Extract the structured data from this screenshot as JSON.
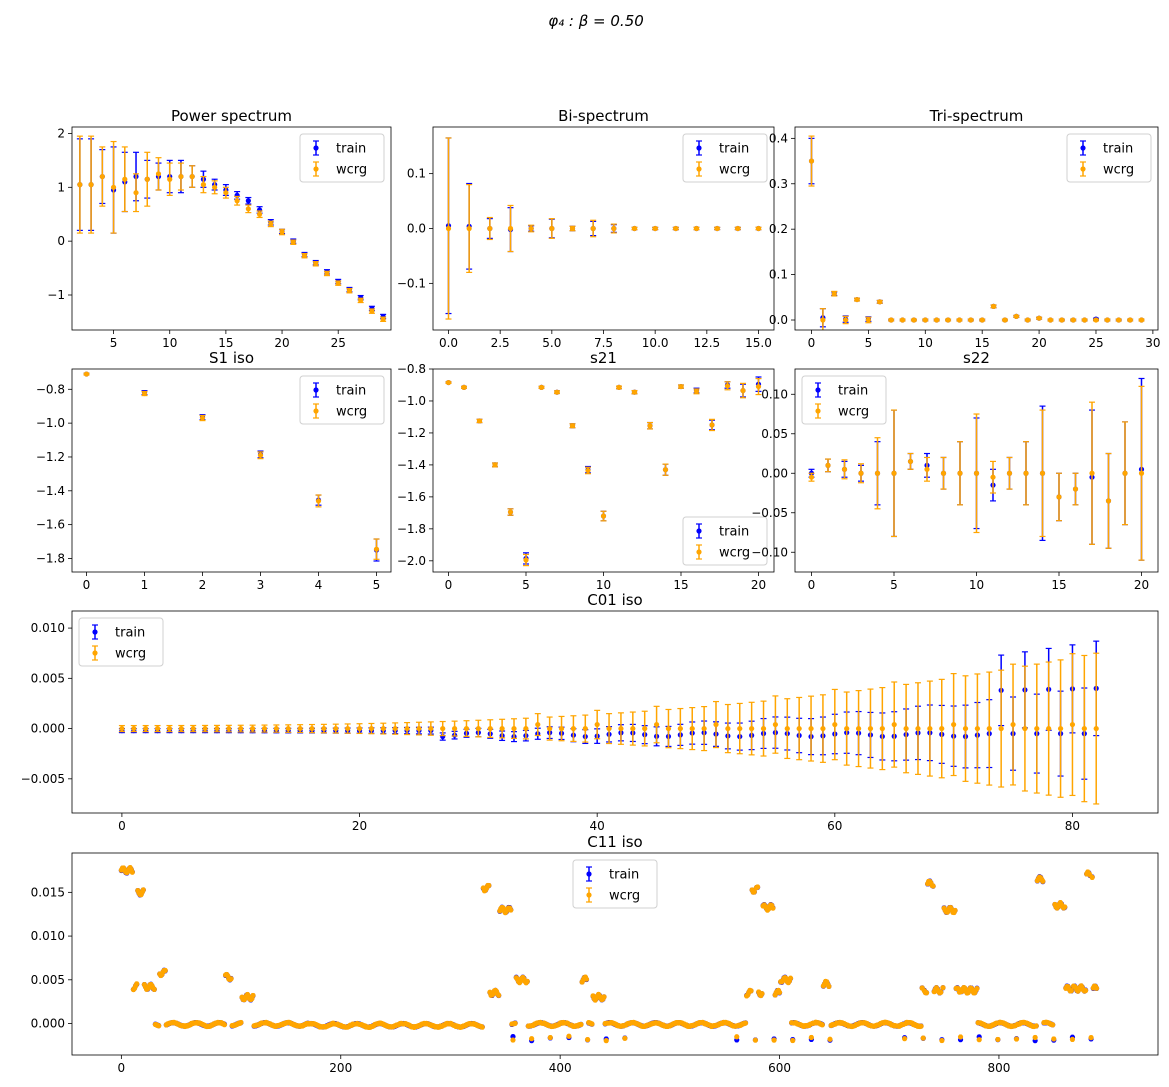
{
  "figure": {
    "suptitle": "φ₄ : β = 0.50"
  },
  "legend_labels": [
    "train",
    "wcrg"
  ],
  "colors": {
    "train": "#0000ff",
    "wcrg": "#ffa500"
  },
  "chart_data": [
    {
      "id": "power",
      "type": "scatter",
      "title": "Power spectrum",
      "xlabel": "",
      "ylabel": "",
      "xlim": [
        1.3,
        29.7
      ],
      "ylim": [
        -1.65,
        2.12
      ],
      "xticks": [
        5,
        10,
        15,
        20,
        25,
        30
      ],
      "yticks": [
        -1,
        0,
        1,
        2
      ],
      "legend_position": "top-right",
      "series": [
        {
          "name": "train",
          "x": [
            2,
            3,
            4,
            5,
            6,
            7,
            8,
            9,
            10,
            11,
            12,
            13,
            14,
            15,
            16,
            17,
            18,
            19,
            20,
            21,
            22,
            23,
            24,
            25,
            26,
            27,
            28,
            29
          ],
          "y": [
            1.05,
            1.05,
            1.2,
            0.95,
            1.1,
            1.2,
            1.15,
            1.2,
            1.2,
            1.2,
            1.2,
            1.15,
            1.05,
            0.95,
            0.85,
            0.75,
            0.58,
            0.35,
            0.18,
            0.0,
            -0.25,
            -0.4,
            -0.57,
            -0.75,
            -0.9,
            -1.05,
            -1.25,
            -1.4
          ],
          "err": [
            0.85,
            0.85,
            0.5,
            0.8,
            0.55,
            0.45,
            0.35,
            0.25,
            0.3,
            0.3,
            0.2,
            0.15,
            0.1,
            0.1,
            0.07,
            0.06,
            0.06,
            0.05,
            0.04,
            0.04,
            0.04,
            0.04,
            0.04,
            0.04,
            0.04,
            0.04,
            0.04,
            0.04
          ]
        },
        {
          "name": "wcrg",
          "x": [
            2,
            3,
            4,
            5,
            6,
            7,
            8,
            9,
            10,
            11,
            12,
            13,
            14,
            15,
            16,
            17,
            18,
            19,
            20,
            21,
            22,
            23,
            24,
            25,
            26,
            27,
            28,
            29
          ],
          "y": [
            1.05,
            1.05,
            1.2,
            1.0,
            1.15,
            0.9,
            1.15,
            1.25,
            1.15,
            1.2,
            1.2,
            1.05,
            1.0,
            0.9,
            0.75,
            0.6,
            0.5,
            0.32,
            0.17,
            -0.02,
            -0.27,
            -0.42,
            -0.6,
            -0.78,
            -0.92,
            -1.1,
            -1.3,
            -1.45
          ],
          "err": [
            0.9,
            0.9,
            0.55,
            0.85,
            0.6,
            0.35,
            0.5,
            0.3,
            0.3,
            0.25,
            0.2,
            0.15,
            0.12,
            0.1,
            0.08,
            0.07,
            0.06,
            0.05,
            0.05,
            0.04,
            0.04,
            0.04,
            0.04,
            0.04,
            0.04,
            0.04,
            0.04,
            0.04
          ]
        }
      ]
    },
    {
      "id": "bi",
      "type": "scatter",
      "title": "Bi-spectrum",
      "xlabel": "",
      "ylabel": "",
      "xlim": [
        -0.75,
        15.75
      ],
      "ylim": [
        -0.185,
        0.185
      ],
      "xticks": [
        0.0,
        2.5,
        5.0,
        7.5,
        10.0,
        12.5,
        15.0
      ],
      "yticks": [
        -0.1,
        0.0,
        0.1
      ],
      "legend_position": "top-right",
      "series": [
        {
          "name": "train",
          "x": [
            0,
            1,
            2,
            3,
            4,
            5,
            6,
            7,
            8,
            9,
            10,
            11,
            12,
            13,
            14,
            15
          ],
          "y": [
            0.005,
            0.004,
            0.0,
            -0.002,
            0.0,
            0.0,
            0.0,
            0.0,
            0.0,
            0.0,
            0.0,
            0.0,
            0.0,
            0.0,
            0.0,
            0.0
          ],
          "err": [
            0.16,
            0.078,
            0.018,
            0.04,
            0.005,
            0.017,
            0.004,
            0.013,
            0.007,
            0.002,
            0.002,
            0.002,
            0.002,
            0.002,
            0.002,
            0.002
          ]
        },
        {
          "name": "wcrg",
          "x": [
            0,
            1,
            2,
            3,
            4,
            5,
            6,
            7,
            8,
            9,
            10,
            11,
            12,
            13,
            14,
            15
          ],
          "y": [
            0.0,
            0.0,
            0.0,
            0.0,
            0.0,
            0.0,
            0.0,
            0.0,
            0.0,
            0.0,
            0.0,
            0.0,
            0.0,
            0.0,
            0.0,
            0.0
          ],
          "err": [
            0.165,
            0.08,
            0.02,
            0.042,
            0.006,
            0.018,
            0.004,
            0.015,
            0.008,
            0.002,
            0.002,
            0.002,
            0.002,
            0.002,
            0.002,
            0.002
          ]
        }
      ]
    },
    {
      "id": "tri",
      "type": "scatter",
      "title": "Tri-spectrum",
      "xlabel": "",
      "ylabel": "",
      "xlim": [
        -1.45,
        30.45
      ],
      "ylim": [
        -0.022,
        0.425
      ],
      "xticks": [
        0,
        5,
        10,
        15,
        20,
        25,
        30
      ],
      "yticks": [
        0.0,
        0.1,
        0.2,
        0.3,
        0.4
      ],
      "legend_position": "top-right",
      "series": [
        {
          "name": "train",
          "x": [
            0,
            1,
            2,
            3,
            4,
            5,
            6,
            7,
            8,
            9,
            10,
            11,
            12,
            13,
            14,
            15,
            16,
            17,
            18,
            19,
            20,
            21,
            22,
            23,
            24,
            25,
            26,
            27,
            28,
            29
          ],
          "y": [
            0.35,
            0.005,
            0.058,
            0.002,
            0.045,
            0.002,
            0.04,
            0.0,
            0.0,
            0.0,
            0.0,
            0.0,
            0.0,
            0.0,
            0.0,
            0.0,
            0.03,
            0.0,
            0.008,
            0.0,
            0.004,
            0.0,
            0.0,
            0.0,
            0.0,
            0.002,
            0.0,
            0.0,
            0.0,
            0.0
          ],
          "err": [
            0.05,
            0.02,
            0.004,
            0.007,
            0.003,
            0.005,
            0.003,
            0.002,
            0.002,
            0.002,
            0.002,
            0.002,
            0.002,
            0.002,
            0.002,
            0.002,
            0.003,
            0.002,
            0.002,
            0.002,
            0.002,
            0.002,
            0.002,
            0.002,
            0.002,
            0.002,
            0.002,
            0.002,
            0.002,
            0.002
          ]
        },
        {
          "name": "wcrg",
          "x": [
            0,
            1,
            2,
            3,
            4,
            5,
            6,
            7,
            8,
            9,
            10,
            11,
            12,
            13,
            14,
            15,
            16,
            17,
            18,
            19,
            20,
            21,
            22,
            23,
            24,
            25,
            26,
            27,
            28,
            29
          ],
          "y": [
            0.35,
            0.0,
            0.058,
            0.0,
            0.045,
            0.0,
            0.04,
            0.0,
            0.0,
            0.0,
            0.0,
            0.0,
            0.0,
            0.0,
            0.0,
            0.0,
            0.03,
            0.0,
            0.008,
            0.0,
            0.004,
            0.0,
            0.0,
            0.0,
            0.0,
            0.0,
            0.0,
            0.0,
            0.0,
            0.0
          ],
          "err": [
            0.055,
            0.025,
            0.005,
            0.008,
            0.003,
            0.006,
            0.003,
            0.002,
            0.002,
            0.002,
            0.002,
            0.002,
            0.002,
            0.002,
            0.002,
            0.002,
            0.003,
            0.002,
            0.002,
            0.002,
            0.002,
            0.002,
            0.002,
            0.002,
            0.002,
            0.002,
            0.002,
            0.002,
            0.002,
            0.002
          ]
        }
      ]
    },
    {
      "id": "s1iso",
      "type": "scatter",
      "title": "S1 iso",
      "xlabel": "",
      "ylabel": "",
      "xlim": [
        -0.25,
        5.25
      ],
      "ylim": [
        -1.88,
        -0.68
      ],
      "xticks": [
        0,
        1,
        2,
        3,
        4,
        5
      ],
      "yticks": [
        -1.8,
        -1.6,
        -1.4,
        -1.2,
        -1.0,
        -0.8
      ],
      "legend_position": "top-right",
      "series": [
        {
          "name": "train",
          "x": [
            0,
            1,
            2,
            3,
            4,
            5
          ],
          "y": [
            -0.71,
            -0.82,
            -0.965,
            -1.185,
            -1.455,
            -1.75
          ],
          "err": [
            0.005,
            0.012,
            0.015,
            0.02,
            0.03,
            0.065
          ]
        },
        {
          "name": "wcrg",
          "x": [
            0,
            1,
            2,
            3,
            4,
            5
          ],
          "y": [
            -0.71,
            -0.825,
            -0.97,
            -1.19,
            -1.46,
            -1.745
          ],
          "err": [
            0.005,
            0.012,
            0.015,
            0.02,
            0.035,
            0.06
          ]
        }
      ]
    },
    {
      "id": "s21",
      "type": "scatter",
      "title": "s21",
      "xlabel": "",
      "ylabel": "",
      "xlim": [
        -1.0,
        21.0
      ],
      "ylim": [
        -2.07,
        -0.8
      ],
      "xticks": [
        0,
        5,
        10,
        15,
        20
      ],
      "yticks": [
        -2.0,
        -1.8,
        -1.6,
        -1.4,
        -1.2,
        -1.0,
        -0.8
      ],
      "legend_position": "bottom-right",
      "series": [
        {
          "name": "train",
          "x": [
            0,
            1,
            2,
            3,
            4,
            5,
            6,
            7,
            8,
            9,
            10,
            11,
            12,
            13,
            14,
            15,
            16,
            17,
            18,
            19,
            20
          ],
          "y": [
            -0.885,
            -0.915,
            -1.125,
            -1.4,
            -1.695,
            -1.985,
            -0.915,
            -0.945,
            -1.155,
            -1.43,
            -1.72,
            -0.915,
            -0.945,
            -1.155,
            -1.43,
            -0.91,
            -0.935,
            -1.15,
            -0.9,
            -0.935,
            -0.895
          ],
          "err": [
            0.005,
            0.006,
            0.01,
            0.012,
            0.02,
            0.035,
            0.006,
            0.008,
            0.012,
            0.02,
            0.03,
            0.008,
            0.01,
            0.02,
            0.035,
            0.01,
            0.015,
            0.03,
            0.02,
            0.04,
            0.045
          ]
        },
        {
          "name": "wcrg",
          "x": [
            0,
            1,
            2,
            3,
            4,
            5,
            6,
            7,
            8,
            9,
            10,
            11,
            12,
            13,
            14,
            15,
            16,
            17,
            18,
            19,
            20
          ],
          "y": [
            -0.885,
            -0.915,
            -1.125,
            -1.4,
            -1.695,
            -1.995,
            -0.915,
            -0.945,
            -1.155,
            -1.435,
            -1.72,
            -0.915,
            -0.945,
            -1.155,
            -1.43,
            -0.91,
            -0.94,
            -1.15,
            -0.905,
            -0.935,
            -0.91
          ],
          "err": [
            0.005,
            0.006,
            0.01,
            0.012,
            0.02,
            0.035,
            0.006,
            0.008,
            0.012,
            0.02,
            0.03,
            0.008,
            0.01,
            0.02,
            0.035,
            0.01,
            0.015,
            0.035,
            0.025,
            0.045,
            0.05
          ]
        }
      ]
    },
    {
      "id": "s22",
      "type": "scatter",
      "title": "s22",
      "xlabel": "",
      "ylabel": "",
      "xlim": [
        -1.0,
        21.0
      ],
      "ylim": [
        -0.125,
        0.132
      ],
      "xticks": [
        0,
        5,
        10,
        15,
        20
      ],
      "yticks": [
        -0.1,
        -0.05,
        0.0,
        0.05,
        0.1
      ],
      "legend_position": "top-left",
      "series": [
        {
          "name": "train",
          "x": [
            0,
            1,
            2,
            3,
            4,
            5,
            6,
            7,
            8,
            9,
            10,
            11,
            12,
            13,
            14,
            15,
            16,
            17,
            18,
            19,
            20
          ],
          "y": [
            0.0,
            0.01,
            0.005,
            0.0,
            0.0,
            0.0,
            0.015,
            0.01,
            0.0,
            0.0,
            0.0,
            -0.015,
            0.0,
            0.0,
            0.0,
            -0.03,
            -0.02,
            -0.005,
            -0.035,
            0.0,
            0.005
          ],
          "err": [
            0.005,
            0.008,
            0.01,
            0.01,
            0.04,
            0.08,
            0.01,
            0.015,
            0.02,
            0.04,
            0.07,
            0.02,
            0.02,
            0.04,
            0.085,
            0.03,
            0.02,
            0.085,
            0.06,
            0.065,
            0.115
          ]
        },
        {
          "name": "wcrg",
          "x": [
            0,
            1,
            2,
            3,
            4,
            5,
            6,
            7,
            8,
            9,
            10,
            11,
            12,
            13,
            14,
            15,
            16,
            17,
            18,
            19,
            20
          ],
          "y": [
            -0.005,
            0.01,
            0.005,
            0.0,
            0.0,
            0.0,
            0.015,
            0.005,
            0.0,
            0.0,
            0.0,
            -0.005,
            0.0,
            0.0,
            0.0,
            -0.03,
            -0.02,
            0.0,
            -0.035,
            0.0,
            0.0
          ],
          "err": [
            0.005,
            0.008,
            0.012,
            0.012,
            0.045,
            0.08,
            0.01,
            0.015,
            0.02,
            0.04,
            0.075,
            0.02,
            0.02,
            0.04,
            0.08,
            0.03,
            0.02,
            0.09,
            0.06,
            0.065,
            0.11
          ]
        }
      ]
    },
    {
      "id": "c01iso",
      "type": "scatter",
      "title": "C01 iso",
      "xlabel": "",
      "ylabel": "",
      "xlim": [
        -4.2,
        87.2
      ],
      "ylim": [
        -0.0084,
        0.0117
      ],
      "xticks": [
        0,
        20,
        40,
        60,
        80
      ],
      "yticks": [
        -0.005,
        0.0,
        0.005,
        0.01
      ],
      "legend_position": "top-left",
      "series": [
        {
          "name": "train",
          "generated": "c01_train"
        },
        {
          "name": "wcrg",
          "generated": "c01_wcrg"
        }
      ]
    },
    {
      "id": "c11iso",
      "type": "scatter",
      "title": "C11 iso",
      "xlabel": "",
      "ylabel": "",
      "xlim": [
        -45,
        945
      ],
      "ylim": [
        -0.0036,
        0.0195
      ],
      "xticks": [
        0,
        200,
        400,
        600,
        800
      ],
      "yticks": [
        0.0,
        0.005,
        0.01,
        0.015
      ],
      "legend_position": "top-center",
      "series": [
        {
          "name": "train",
          "generated": "c11_train"
        },
        {
          "name": "wcrg",
          "generated": "c11_wcrg"
        }
      ]
    }
  ]
}
